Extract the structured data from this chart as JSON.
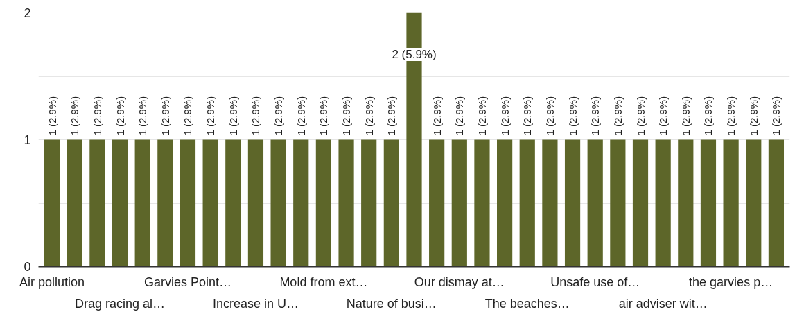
{
  "chart_data": {
    "type": "bar",
    "categories": [
      "Air pollution",
      null,
      null,
      "Drag racing al…",
      null,
      null,
      "Garvies Point…",
      null,
      null,
      "Increase in U…",
      null,
      null,
      "Mold from ext…",
      null,
      null,
      "Nature of busi…",
      null,
      null,
      "Our dismay at…",
      null,
      null,
      "The beaches…",
      null,
      null,
      "Unsafe use of…",
      null,
      null,
      "air adviser wit…",
      null,
      null,
      "the garvies p…",
      null,
      null
    ],
    "values": [
      1,
      1,
      1,
      1,
      1,
      1,
      1,
      1,
      1,
      1,
      1,
      1,
      1,
      1,
      1,
      1,
      2,
      1,
      1,
      1,
      1,
      1,
      1,
      1,
      1,
      1,
      1,
      1,
      1,
      1,
      1,
      1,
      1
    ],
    "value_labels": [
      "1 (2.9%)",
      "1 (2.9%)",
      "1 (2.9%)",
      "1 (2.9%)",
      "1 (2.9%)",
      "1 (2.9%)",
      "1 (2.9%)",
      "1 (2.9%)",
      "1 (2.9%)",
      "1 (2.9%)",
      "1 (2.9%)",
      "1 (2.9%)",
      "1 (2.9%)",
      "1 (2.9%)",
      "1 (2.9%)",
      "1 (2.9%)",
      "2 (5.9%)",
      "1 (2.9%)",
      "1 (2.9%)",
      "1 (2.9%)",
      "1 (2.9%)",
      "1 (2.9%)",
      "1 (2.9%)",
      "1 (2.9%)",
      "1 (2.9%)",
      "1 (2.9%)",
      "1 (2.9%)",
      "1 (2.9%)",
      "1 (2.9%)",
      "1 (2.9%)",
      "1 (2.9%)",
      "1 (2.9%)",
      "1 (2.9%)"
    ],
    "color": "#5d6629",
    "ylim": [
      0,
      2
    ],
    "yticks": [
      0,
      {
        "value": 0.5,
        "label": null
      },
      1,
      {
        "value": 1.5,
        "label": null
      },
      2
    ],
    "grid": "y"
  }
}
